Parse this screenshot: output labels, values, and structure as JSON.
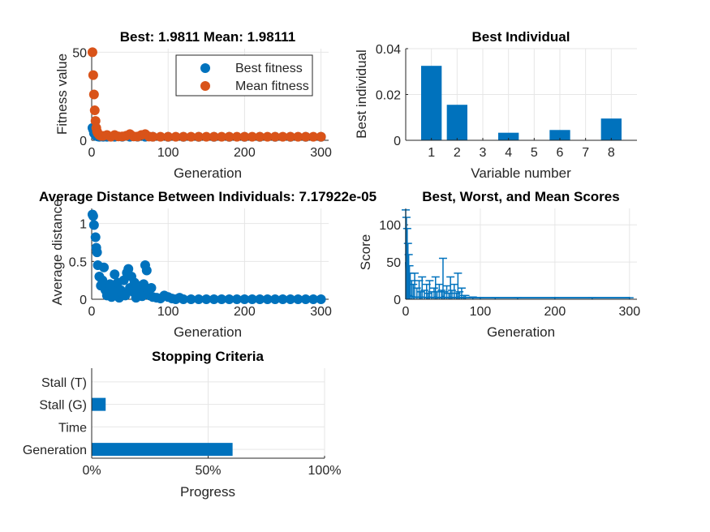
{
  "colors": {
    "blue": "#0072BD",
    "orange": "#D95319",
    "axis": "#262626",
    "grid": "#e6e6e6"
  },
  "chart_data": [
    {
      "id": "fitness",
      "type": "scatter",
      "title": "Best: 1.9811 Mean: 1.98111",
      "xlabel": "Generation",
      "ylabel": "Fitness value",
      "xlim": [
        0,
        310
      ],
      "ylim": [
        0,
        52
      ],
      "xticks": [
        0,
        100,
        200,
        300
      ],
      "yticks": [
        0,
        50
      ],
      "grid": true,
      "legend": {
        "placement": "top-right",
        "entries": [
          "Best fitness",
          "Mean fitness"
        ]
      },
      "series": [
        {
          "name": "Best fitness",
          "color": "#0072BD",
          "x": [
            1,
            2,
            3,
            4,
            5,
            6,
            8,
            10,
            15,
            20,
            30,
            40,
            50,
            60,
            70,
            80,
            100,
            120,
            140,
            160,
            180,
            200,
            220,
            240,
            260,
            280,
            300
          ],
          "y": [
            7,
            6,
            4,
            3.5,
            3,
            2.5,
            2.2,
            2.0,
            2.0,
            2.0,
            1.99,
            1.99,
            1.99,
            1.99,
            1.99,
            1.99,
            1.98,
            1.98,
            1.98,
            1.98,
            1.98,
            1.98,
            1.98,
            1.98,
            1.98,
            1.98,
            1.98
          ]
        },
        {
          "name": "Mean fitness",
          "color": "#D95319",
          "x": [
            1,
            2,
            3,
            4,
            5,
            6,
            7,
            8,
            10,
            12,
            15,
            20,
            25,
            30,
            35,
            40,
            45,
            50,
            55,
            60,
            65,
            70,
            75,
            80,
            90,
            100,
            110,
            120,
            130,
            140,
            150,
            160,
            170,
            180,
            190,
            200,
            210,
            220,
            230,
            240,
            250,
            260,
            270,
            280,
            290,
            300
          ],
          "y": [
            50,
            37,
            26,
            17,
            11,
            7,
            5,
            4,
            3,
            2.5,
            2.5,
            3,
            2,
            3,
            2.2,
            2.2,
            2.6,
            3.5,
            2.2,
            2.1,
            3,
            3.5,
            2.1,
            2.0,
            2.0,
            2.0,
            2.0,
            2.0,
            2.0,
            2.0,
            2.0,
            2.0,
            2.0,
            2.0,
            2.0,
            2.0,
            2.0,
            2.0,
            2.0,
            2.0,
            2.0,
            2.0,
            2.0,
            2.0,
            2.0,
            2.0
          ]
        }
      ]
    },
    {
      "id": "bestind",
      "type": "bar",
      "title": "Best Individual",
      "xlabel": "Variable number",
      "ylabel": "Best individual",
      "categories": [
        "1",
        "2",
        "3",
        "4",
        "5",
        "6",
        "7",
        "8"
      ],
      "values": [
        0.0325,
        0.0155,
        0,
        0.0033,
        0,
        0.0045,
        0,
        0.0095
      ],
      "ylim": [
        0,
        0.04
      ],
      "yticks": [
        0,
        0.02,
        0.04
      ],
      "ytick_labels": [
        "0",
        "0.02",
        "0.04"
      ],
      "grid": true,
      "color": "#0072BD"
    },
    {
      "id": "avgdist",
      "type": "scatter",
      "title": "Average Distance Between Individuals: 7.17922e-05",
      "xlabel": "Generation",
      "ylabel": "Average distance",
      "xlim": [
        0,
        310
      ],
      "ylim": [
        0,
        1.2
      ],
      "xticks": [
        0,
        100,
        200,
        300
      ],
      "yticks": [
        0,
        0.5,
        1
      ],
      "ytick_labels": [
        "0",
        "0.5",
        "1"
      ],
      "grid": true,
      "series": [
        {
          "color": "#0072BD",
          "x": [
            1,
            2,
            3,
            5,
            6,
            7,
            8,
            10,
            12,
            14,
            16,
            18,
            20,
            22,
            24,
            26,
            28,
            30,
            32,
            34,
            36,
            38,
            40,
            42,
            44,
            46,
            48,
            50,
            52,
            54,
            56,
            58,
            60,
            62,
            64,
            66,
            68,
            70,
            72,
            74,
            76,
            78,
            80,
            85,
            90,
            95,
            100,
            105,
            110,
            115,
            120,
            130,
            140,
            150,
            160,
            170,
            180,
            190,
            200,
            210,
            220,
            230,
            240,
            250,
            260,
            270,
            280,
            290,
            300
          ],
          "y": [
            1.12,
            1.1,
            0.98,
            0.82,
            0.68,
            0.62,
            0.45,
            0.3,
            0.18,
            0.25,
            0.42,
            0.12,
            0.05,
            0.1,
            0.2,
            0.03,
            0.15,
            0.33,
            0.1,
            0.22,
            0.02,
            0.12,
            0.08,
            0.25,
            0.05,
            0.35,
            0.4,
            0.15,
            0.3,
            0.1,
            0.22,
            0.02,
            0.18,
            0.08,
            0.12,
            0.04,
            0.2,
            0.45,
            0.38,
            0.1,
            0.05,
            0.15,
            0.03,
            0.02,
            0.01,
            0.05,
            0.03,
            0.01,
            0.0,
            0.02,
            0.0,
            0.0,
            0.0,
            0.0,
            0.0,
            0.0,
            0.0,
            0.0,
            0.0,
            0.0,
            0.0,
            0.0,
            0.0,
            0.0,
            0.0,
            0.0,
            0.0,
            0.0,
            0.0
          ]
        }
      ]
    },
    {
      "id": "scores",
      "type": "line",
      "title": "Best, Worst, and Mean Scores",
      "xlabel": "Generation",
      "ylabel": "Score",
      "xlim": [
        0,
        310
      ],
      "ylim": [
        0,
        122
      ],
      "xticks": [
        0,
        100,
        200,
        300
      ],
      "yticks": [
        0,
        50,
        100
      ],
      "grid": true,
      "series": [
        {
          "color": "#0072BD",
          "x": [
            0,
            1,
            2,
            3,
            4,
            5,
            6,
            8,
            10,
            12,
            15,
            18,
            20,
            22,
            25,
            28,
            30,
            32,
            35,
            38,
            40,
            42,
            45,
            48,
            50,
            52,
            55,
            58,
            60,
            62,
            65,
            68,
            70,
            72,
            75,
            78,
            80,
            90,
            100,
            120,
            150,
            200,
            250,
            300
          ],
          "worst": [
            120,
            110,
            95,
            75,
            60,
            45,
            35,
            25,
            20,
            35,
            15,
            25,
            10,
            30,
            12,
            20,
            8,
            25,
            10,
            15,
            30,
            10,
            20,
            12,
            55,
            10,
            18,
            8,
            30,
            12,
            20,
            8,
            35,
            10,
            15,
            5,
            5,
            3,
            2,
            2,
            2,
            2,
            2,
            2
          ],
          "mean": [
            50,
            30,
            20,
            12,
            8,
            6,
            5,
            4,
            3,
            3,
            2.5,
            3,
            2,
            3,
            2.5,
            2.2,
            2,
            3,
            2,
            2.5,
            3,
            2,
            2.5,
            2,
            4,
            2,
            2.5,
            2,
            3,
            2,
            2.5,
            2,
            3,
            2,
            2.2,
            2,
            2,
            2,
            2,
            2,
            2,
            2,
            2,
            2
          ]
        }
      ]
    },
    {
      "id": "stopping",
      "type": "bar",
      "orientation": "horizontal",
      "title": "Stopping Criteria",
      "xlabel": "Progress",
      "categories": [
        "Stall (T)",
        "Stall (G)",
        "Time",
        "Generation"
      ],
      "values": [
        0,
        0.06,
        0,
        0.605
      ],
      "xlim": [
        0,
        1
      ],
      "xticks": [
        0,
        0.5,
        1
      ],
      "xtick_labels": [
        "0%",
        "50%",
        "100%"
      ],
      "grid": true,
      "color": "#0072BD"
    }
  ]
}
